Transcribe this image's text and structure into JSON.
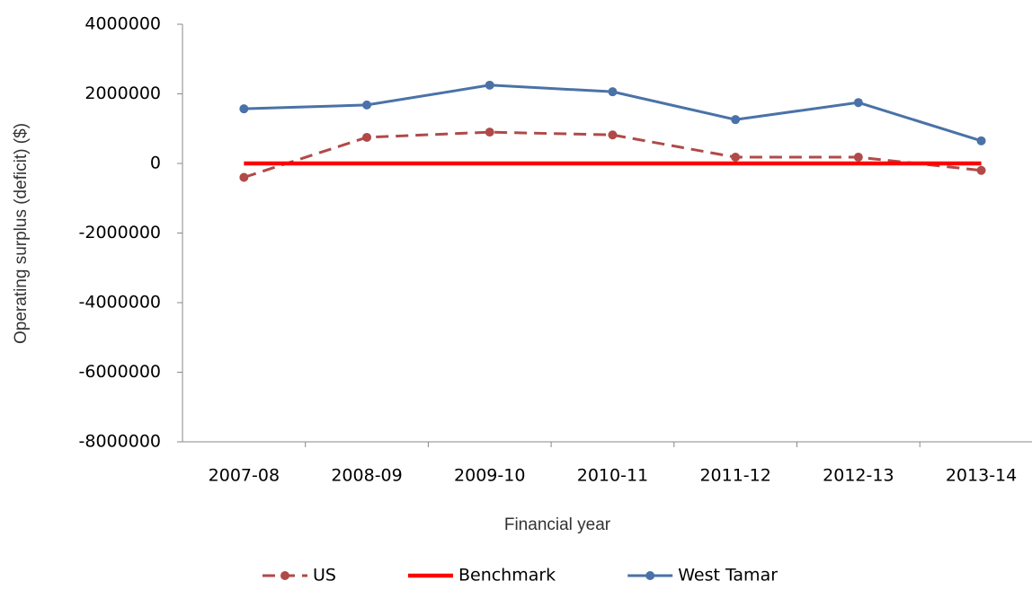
{
  "chart_data": {
    "type": "line",
    "x_label": "Financial year",
    "y_label": "Operating surplus (deficit) ($)",
    "categories": [
      "2007-08",
      "2008-09",
      "2009-10",
      "2010-11",
      "2011-12",
      "2012-13",
      "2013-14"
    ],
    "series": [
      {
        "name": "US",
        "color": "#b04a48",
        "dash": true,
        "markers": true,
        "values": [
          -400000,
          750000,
          900000,
          820000,
          180000,
          180000,
          -200000
        ]
      },
      {
        "name": "Benchmark",
        "color": "#ff0000",
        "dash": false,
        "markers": false,
        "values": [
          0,
          0,
          0,
          0,
          0,
          0,
          0
        ]
      },
      {
        "name": "West Tamar",
        "color": "#4a72a8",
        "dash": false,
        "markers": true,
        "values": [
          1570000,
          1680000,
          2250000,
          2060000,
          1260000,
          1750000,
          650000
        ]
      }
    ],
    "ylim": [
      -8000000,
      4000000
    ],
    "yticks": [
      -8000000,
      -6000000,
      -4000000,
      -2000000,
      0,
      2000000,
      4000000
    ],
    "grid": false,
    "legend": "bottom"
  }
}
